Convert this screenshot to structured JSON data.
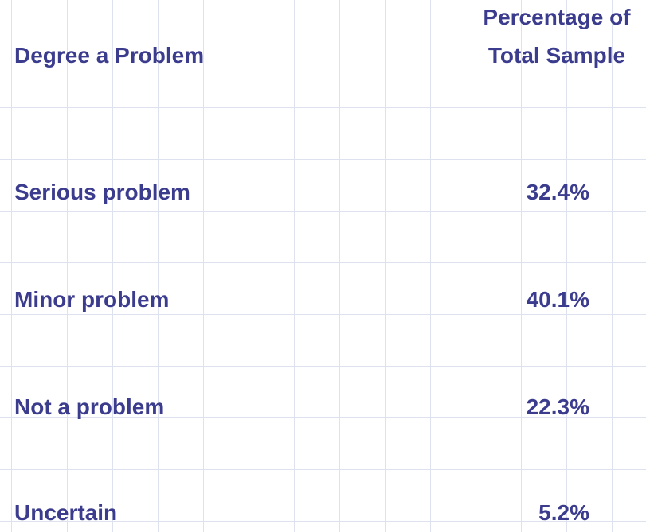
{
  "table": {
    "header": [
      "Degree a Problem",
      "Percentage of Total Sample"
    ],
    "rows": [
      [
        "Serious problem",
        "32.4%"
      ],
      [
        "Minor problem",
        "40.1%"
      ],
      [
        "Not a problem",
        "22.3%"
      ],
      [
        "Uncertain",
        "5.2%"
      ]
    ]
  }
}
